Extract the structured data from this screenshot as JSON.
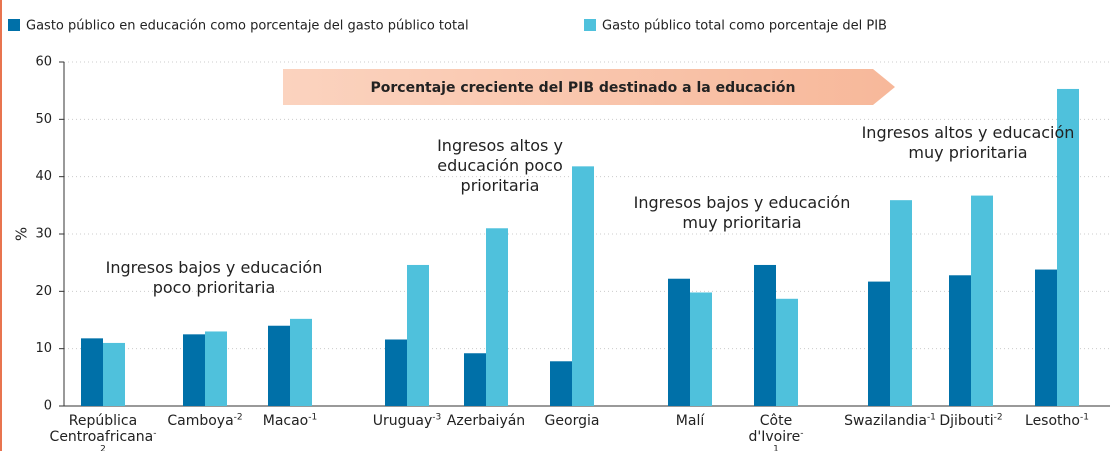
{
  "chart_data": {
    "type": "bar",
    "categories": [
      "República Centroafricana",
      "Camboya",
      "Macao",
      "Uruguay",
      "Azerbaiyán",
      "Georgia",
      "Malí",
      "Côte d'Ivoire",
      "Swazilandia",
      "Djibouti",
      "Lesotho"
    ],
    "category_superscripts": [
      "-2",
      "-2",
      "-1",
      "-3",
      null,
      null,
      null,
      "-1",
      "-1",
      "-2",
      "-1"
    ],
    "series": [
      {
        "name": "Gasto público en educación como porcentaje del gasto público total",
        "color": "#0070a8",
        "values": [
          11.8,
          12.5,
          14,
          11.6,
          9.2,
          7.8,
          22.2,
          24.6,
          21.7,
          22.8,
          23.8
        ]
      },
      {
        "name": "Gasto público total como porcentaje del PIB",
        "color": "#4fc1dc",
        "values": [
          11,
          13,
          15.2,
          24.6,
          31,
          41.8,
          19.8,
          18.7,
          35.9,
          36.7,
          55.3
        ]
      }
    ],
    "ylabel": "%",
    "ylim": [
      0,
      60
    ],
    "yticks": [
      0,
      10,
      20,
      30,
      40,
      50,
      60
    ],
    "grid": true,
    "arrow_text": "Porcentaje creciente del PIB destinado a la educación",
    "annotations": [
      "Ingresos bajos y educación poco prioritaria",
      "Ingresos altos y educación poco prioritaria",
      "Ingresos bajos y educación muy prioritaria",
      "Ingresos altos y educación muy prioritaria"
    ]
  }
}
